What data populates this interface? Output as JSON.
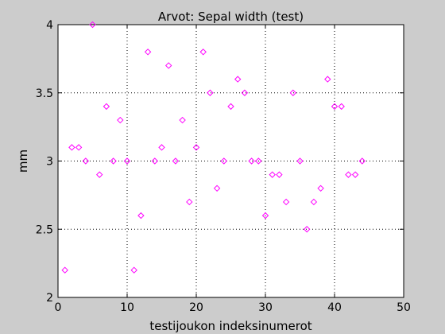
{
  "window": {
    "background": "#cccccc"
  },
  "chart_data": {
    "type": "scatter",
    "title": "Arvot: Sepal width (test)",
    "xlabel": "testijoukon indeksinumerot",
    "ylabel": "mm",
    "xlim": [
      0,
      50
    ],
    "ylim": [
      2,
      4
    ],
    "xticks": [
      0,
      10,
      20,
      30,
      40,
      50
    ],
    "yticks": [
      2,
      2.5,
      3,
      3.5,
      4
    ],
    "xtick_labels": [
      "0",
      "10",
      "20",
      "30",
      "40",
      "50"
    ],
    "ytick_labels": [
      "2",
      "2.5",
      "3",
      "3.5",
      "4"
    ],
    "grid": true,
    "marker": "diamond",
    "marker_color": "#ff00ff",
    "series": [
      {
        "x": [
          1,
          2,
          3,
          4,
          5,
          6,
          7,
          8,
          9,
          10,
          11,
          12,
          13,
          14,
          15,
          16,
          17,
          18,
          19,
          20,
          21,
          22,
          23,
          24,
          25,
          26,
          27,
          28,
          29,
          30,
          31,
          32,
          33,
          34,
          35,
          36,
          37,
          38,
          39,
          40,
          41,
          42,
          43,
          44
        ],
        "y": [
          2.2,
          3.1,
          3.1,
          3.0,
          4.0,
          2.9,
          3.4,
          3.0,
          3.3,
          3.0,
          2.2,
          2.6,
          3.8,
          3.0,
          3.1,
          3.7,
          3.0,
          3.3,
          2.7,
          3.1,
          3.8,
          3.5,
          2.8,
          3.0,
          3.4,
          3.6,
          3.5,
          3.0,
          3.0,
          2.6,
          2.9,
          2.9,
          2.7,
          3.5,
          3.0,
          2.5,
          2.7,
          2.8,
          3.6,
          3.4,
          3.4,
          2.9,
          2.9,
          3.0
        ]
      }
    ]
  }
}
